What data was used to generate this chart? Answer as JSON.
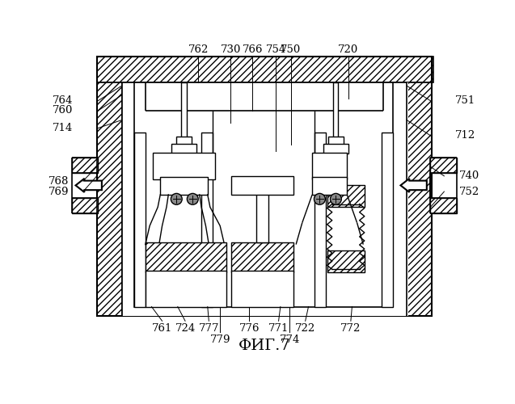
{
  "title": "ФИГ.7",
  "title_fontsize": 14,
  "background_color": "#ffffff",
  "fig_width": 6.37,
  "fig_height": 5.0,
  "dpi": 100
}
